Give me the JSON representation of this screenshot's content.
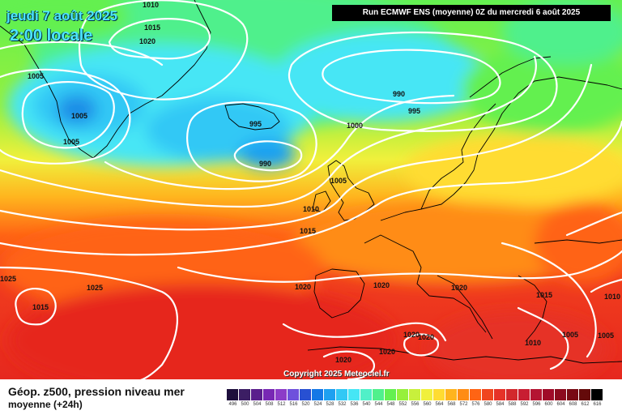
{
  "header": {
    "date": "jeudi 7 août 2025",
    "time": "2:00 locale",
    "run": "Run ECMWF ENS (moyenne) 0Z du mercredi 6 août 2025"
  },
  "copyright": "Copyright 2025 Meteociel.fr",
  "footer": {
    "title": "Géop. z500, pression niveau mer",
    "subtitle": "moyenne  (+24h)"
  },
  "isobar_labels": [
    "1010",
    "1015",
    "1020",
    "1005",
    "1005",
    "1005",
    "990",
    "995",
    "995",
    "990",
    "1000",
    "1005",
    "1010",
    "1015",
    "1020",
    "1020",
    "1020",
    "1025",
    "1025",
    "1015",
    "1015",
    "1010",
    "1005",
    "1005",
    "1020",
    "1020",
    "1020",
    "1010",
    "1020"
  ],
  "colorbar": {
    "ticks": [
      "496",
      "500",
      "504",
      "508",
      "512",
      "516",
      "520",
      "524",
      "528",
      "532",
      "536",
      "540",
      "544",
      "548",
      "552",
      "556",
      "560",
      "564",
      "568",
      "572",
      "576",
      "580",
      "584",
      "588",
      "592",
      "596",
      "600",
      "604",
      "608",
      "612",
      "616"
    ],
    "colors": [
      "#1e0f3c",
      "#3c1e64",
      "#5a1e8c",
      "#7828b4",
      "#8c3cc8",
      "#6e50dc",
      "#2850d2",
      "#1478e6",
      "#1ea0f0",
      "#32c8f5",
      "#46e6f5",
      "#50f0c8",
      "#50f08c",
      "#64f050",
      "#96f03c",
      "#c8f03c",
      "#f0f03c",
      "#ffdc32",
      "#ffb41e",
      "#ff8c14",
      "#ff6414",
      "#f0461e",
      "#e63228",
      "#d2282d",
      "#c81e32",
      "#b41432",
      "#a00a28",
      "#8c0a1e",
      "#780a14",
      "#640a0a",
      "#000000"
    ]
  },
  "colors": {
    "time_text": "#4de6ff",
    "isobar_line": "#ffffff",
    "coast_line": "#000000"
  }
}
